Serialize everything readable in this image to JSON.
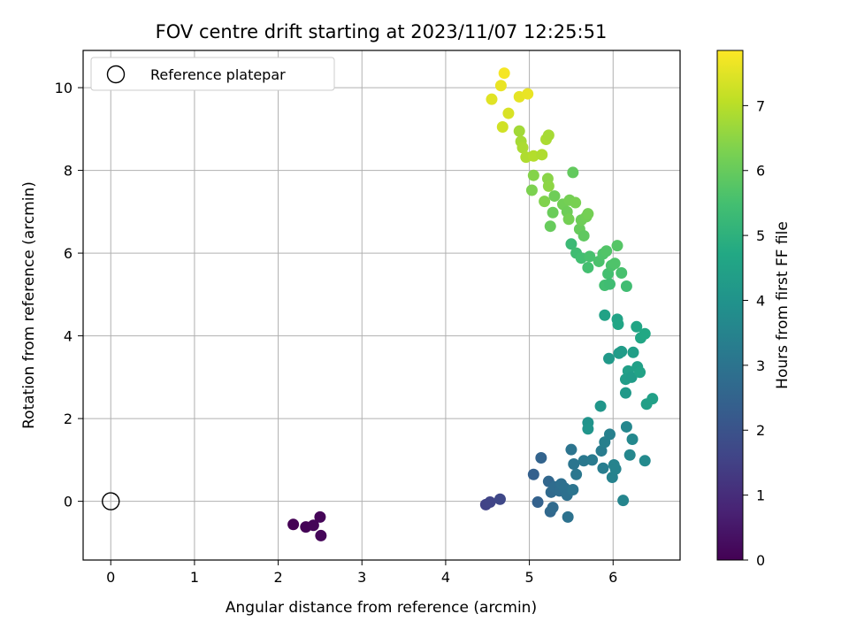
{
  "chart_data": {
    "type": "scatter",
    "title": "FOV centre drift starting at 2023/11/07 12:25:51",
    "xlabel": "Angular distance from reference (arcmin)",
    "ylabel": "Rotation from reference (arcmin)",
    "xlim": [
      -0.33,
      6.8
    ],
    "ylim": [
      -1.42,
      10.9
    ],
    "xticks": [
      "0",
      "1",
      "2",
      "3",
      "4",
      "5",
      "6"
    ],
    "yticks": [
      "0",
      "2",
      "4",
      "6",
      "8",
      "10"
    ],
    "grid": true,
    "legend": {
      "placement": "upper-left",
      "entries": [
        "Reference platepar"
      ]
    },
    "reference_point": {
      "x": 0,
      "y": 0,
      "label": "Reference platepar"
    },
    "colorbar": {
      "label": "Hours from first FF file",
      "colormap": "viridis",
      "range": [
        0,
        7.85
      ],
      "ticks": [
        "0",
        "1",
        "2",
        "3",
        "4",
        "5",
        "6",
        "7"
      ]
    },
    "series": [
      {
        "points": [
          [
            2.18,
            -0.56,
            0.0
          ],
          [
            2.33,
            -0.62,
            0.05
          ],
          [
            2.42,
            -0.58,
            0.08
          ],
          [
            2.5,
            -0.38,
            0.1
          ],
          [
            2.51,
            -0.83,
            0.12
          ],
          [
            4.48,
            -0.08,
            1.55
          ],
          [
            4.53,
            -0.02,
            1.6
          ],
          [
            4.65,
            0.05,
            1.7
          ],
          [
            5.05,
            0.65,
            2.4
          ],
          [
            5.1,
            -0.02,
            2.45
          ],
          [
            5.14,
            1.05,
            2.5
          ],
          [
            5.23,
            0.48,
            2.6
          ],
          [
            5.25,
            -0.25,
            2.65
          ],
          [
            5.26,
            0.22,
            2.7
          ],
          [
            5.28,
            -0.15,
            2.7
          ],
          [
            5.3,
            0.35,
            2.75
          ],
          [
            5.36,
            0.25,
            2.8
          ],
          [
            5.38,
            0.42,
            2.85
          ],
          [
            5.42,
            0.32,
            2.9
          ],
          [
            5.45,
            0.15,
            2.9
          ],
          [
            5.46,
            -0.38,
            2.95
          ],
          [
            5.5,
            1.25,
            3.0
          ],
          [
            5.52,
            0.28,
            3.0
          ],
          [
            5.53,
            0.9,
            3.05
          ],
          [
            5.56,
            0.65,
            3.1
          ],
          [
            5.65,
            0.98,
            3.15
          ],
          [
            5.75,
            1.0,
            3.2
          ],
          [
            5.86,
            1.22,
            3.25
          ],
          [
            5.88,
            0.8,
            3.3
          ],
          [
            5.9,
            1.43,
            3.35
          ],
          [
            5.96,
            1.62,
            3.4
          ],
          [
            5.99,
            0.58,
            3.45
          ],
          [
            6.01,
            0.88,
            3.5
          ],
          [
            6.03,
            0.78,
            3.5
          ],
          [
            6.12,
            0.02,
            3.55
          ],
          [
            6.16,
            1.8,
            3.6
          ],
          [
            6.2,
            1.12,
            3.6
          ],
          [
            6.23,
            1.5,
            3.65
          ],
          [
            6.38,
            0.98,
            3.7
          ],
          [
            5.7,
            1.9,
            4.0
          ],
          [
            5.7,
            1.75,
            4.05
          ],
          [
            5.85,
            2.3,
            4.1
          ],
          [
            5.9,
            4.5,
            4.5
          ],
          [
            5.95,
            3.45,
            4.2
          ],
          [
            6.05,
            4.4,
            4.55
          ],
          [
            6.06,
            4.28,
            4.6
          ],
          [
            6.07,
            3.58,
            4.25
          ],
          [
            6.1,
            3.62,
            4.3
          ],
          [
            6.15,
            2.95,
            4.35
          ],
          [
            6.15,
            2.62,
            4.2
          ],
          [
            6.18,
            3.15,
            4.4
          ],
          [
            6.22,
            3.0,
            4.3
          ],
          [
            6.24,
            3.6,
            4.4
          ],
          [
            6.28,
            4.22,
            4.6
          ],
          [
            6.29,
            3.25,
            4.45
          ],
          [
            6.32,
            3.12,
            4.5
          ],
          [
            6.33,
            3.95,
            4.65
          ],
          [
            6.38,
            4.05,
            4.7
          ],
          [
            6.4,
            2.35,
            4.4
          ],
          [
            6.47,
            2.48,
            4.45
          ],
          [
            5.5,
            6.22,
            5.3
          ],
          [
            5.56,
            6.0,
            5.4
          ],
          [
            5.62,
            5.88,
            5.45
          ],
          [
            5.7,
            5.65,
            5.5
          ],
          [
            5.72,
            5.92,
            5.55
          ],
          [
            5.83,
            5.8,
            5.6
          ],
          [
            5.88,
            5.98,
            5.65
          ],
          [
            5.9,
            5.22,
            5.45
          ],
          [
            5.92,
            6.05,
            5.7
          ],
          [
            5.94,
            5.5,
            5.5
          ],
          [
            5.96,
            5.25,
            5.4
          ],
          [
            5.98,
            5.7,
            5.6
          ],
          [
            6.02,
            5.75,
            5.65
          ],
          [
            6.05,
            6.18,
            5.75
          ],
          [
            6.1,
            5.52,
            5.55
          ],
          [
            6.16,
            5.2,
            5.4
          ],
          [
            5.25,
            6.65,
            6.0
          ],
          [
            5.28,
            6.98,
            6.05
          ],
          [
            5.3,
            7.38,
            6.1
          ],
          [
            5.4,
            7.18,
            6.15
          ],
          [
            5.45,
            7.0,
            6.1
          ],
          [
            5.47,
            6.82,
            6.2
          ],
          [
            5.48,
            7.28,
            6.2
          ],
          [
            5.52,
            7.95,
            5.95
          ],
          [
            5.55,
            7.22,
            6.25
          ],
          [
            5.6,
            6.58,
            6.0
          ],
          [
            5.62,
            6.8,
            6.1
          ],
          [
            5.65,
            6.42,
            5.9
          ],
          [
            5.68,
            6.88,
            6.15
          ],
          [
            5.7,
            6.95,
            6.2
          ],
          [
            5.03,
            7.52,
            6.3
          ],
          [
            5.05,
            7.88,
            6.4
          ],
          [
            5.18,
            7.25,
            6.35
          ],
          [
            5.22,
            7.8,
            6.45
          ],
          [
            5.23,
            7.62,
            6.5
          ],
          [
            4.88,
            8.95,
            6.75
          ],
          [
            4.9,
            8.7,
            6.8
          ],
          [
            4.92,
            8.55,
            6.85
          ],
          [
            4.96,
            8.32,
            6.9
          ],
          [
            5.05,
            8.35,
            6.95
          ],
          [
            5.15,
            8.38,
            6.9
          ],
          [
            5.2,
            8.75,
            6.85
          ],
          [
            5.23,
            8.85,
            6.8
          ],
          [
            4.55,
            9.72,
            7.5
          ],
          [
            4.66,
            10.05,
            7.6
          ],
          [
            4.68,
            9.05,
            7.3
          ],
          [
            4.7,
            10.35,
            7.75
          ],
          [
            4.75,
            9.38,
            7.4
          ],
          [
            4.88,
            9.78,
            7.55
          ],
          [
            4.98,
            9.85,
            7.6
          ]
        ]
      }
    ]
  }
}
